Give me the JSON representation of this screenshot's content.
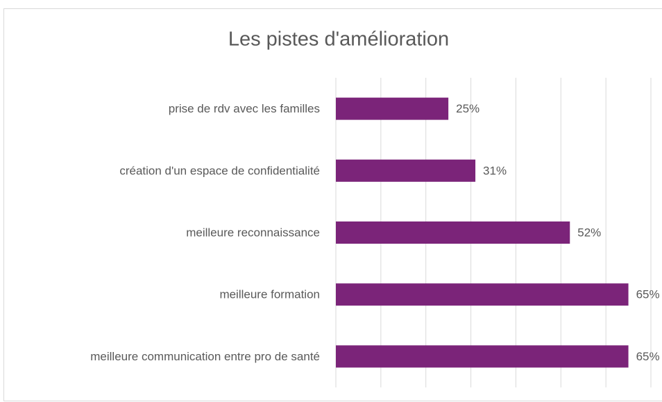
{
  "chart_data": {
    "type": "hbar",
    "title": "Les pistes d'amélioration",
    "categories": [
      "prise de rdv avec les familles",
      "création d'un espace de confidentialité",
      "meilleure reconnaissance",
      "meilleure formation",
      "meilleure communication entre pro de santé"
    ],
    "values": [
      25,
      31,
      52,
      65,
      65
    ],
    "value_labels": [
      "25%",
      "31%",
      "52%",
      "65%",
      "65%"
    ],
    "color": "#7b2479",
    "xlim": [
      0,
      70
    ],
    "xticks": [
      0,
      10,
      20,
      30,
      40,
      50,
      60,
      70
    ],
    "grid": true
  }
}
